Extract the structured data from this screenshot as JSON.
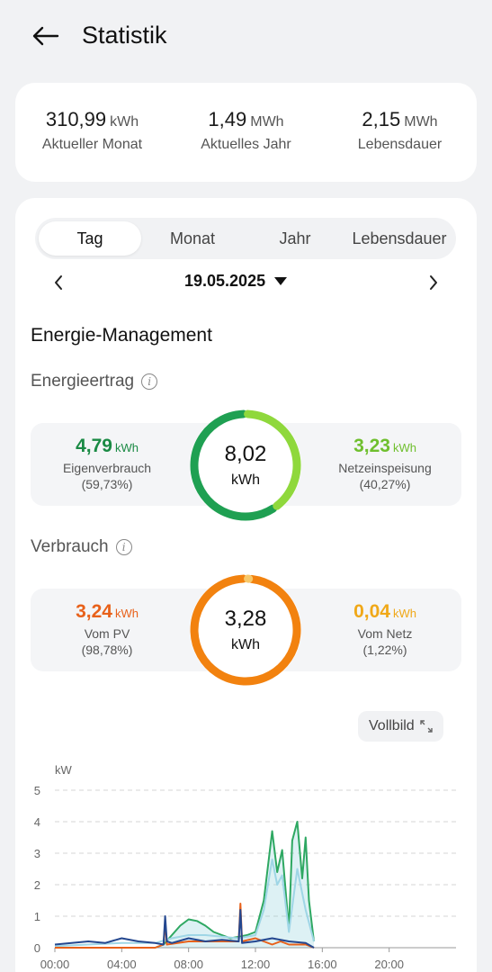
{
  "header": {
    "title": "Statistik"
  },
  "summary": [
    {
      "value": "310,99",
      "unit": "kWh",
      "label": "Aktueller Monat"
    },
    {
      "value": "1,49",
      "unit": "MWh",
      "label": "Aktuelles Jahr"
    },
    {
      "value": "2,15",
      "unit": "MWh",
      "label": "Lebensdauer"
    }
  ],
  "tabs": [
    {
      "label": "Tag",
      "active": true
    },
    {
      "label": "Monat",
      "active": false
    },
    {
      "label": "Jahr",
      "active": false
    },
    {
      "label": "Lebensdauer",
      "active": false
    }
  ],
  "date": "19.05.2025",
  "energy_management": {
    "title": "Energie-Management"
  },
  "yield": {
    "title": "Energieertrag",
    "total_value": "8,02",
    "total_unit": "kWh",
    "left": {
      "value": "4,79",
      "unit": "kWh",
      "label": "Eigenverbrauch",
      "percent": "(59,73%)",
      "color": "#1a8a44"
    },
    "right": {
      "value": "3,23",
      "unit": "kWh",
      "label": "Netzeinspeisung",
      "percent": "(40,27%)",
      "color": "#6fbf2e"
    },
    "fraction_left": 0.5973
  },
  "consumption": {
    "title": "Verbrauch",
    "total_value": "3,28",
    "total_unit": "kWh",
    "left": {
      "value": "3,24",
      "unit": "kWh",
      "label": "Vom PV",
      "percent": "(98,78%)",
      "color": "#e8611a"
    },
    "right": {
      "value": "0,04",
      "unit": "kWh",
      "label": "Vom Netz",
      "percent": "(1,22%)",
      "color": "#f0a818"
    },
    "fraction_left": 0.9878
  },
  "fullscreen_label": "Vollbild",
  "chart_data": {
    "type": "line",
    "ylabel": "kW",
    "ylim": [
      0,
      5
    ],
    "yticks": [
      "0",
      "1",
      "2",
      "3",
      "4",
      "5"
    ],
    "xlim": [
      0,
      24
    ],
    "xticks": [
      "00:00",
      "04:00",
      "08:00",
      "12:00",
      "16:00",
      "20:00"
    ],
    "series": [
      {
        "color": "#2ea862",
        "x": [
          0,
          2,
          4,
          6,
          6.5,
          7,
          7.5,
          8,
          8.5,
          9,
          9.5,
          10,
          10.5,
          11,
          11.5,
          12,
          12.5,
          13,
          13.3,
          13.6,
          14,
          14.2,
          14.5,
          14.8,
          15,
          15.2,
          15.5
        ],
        "values": [
          0,
          0,
          0,
          0,
          0.1,
          0.4,
          0.7,
          0.9,
          0.85,
          0.7,
          0.5,
          0.4,
          0.3,
          0.35,
          0.4,
          0.5,
          1.5,
          3.7,
          2.4,
          3.1,
          0.6,
          3.4,
          4.0,
          2.2,
          3.5,
          1.5,
          0.2
        ]
      },
      {
        "color": "#9fd6e6",
        "x": [
          0,
          2,
          4,
          6,
          7,
          8,
          9,
          10,
          11,
          12,
          12.5,
          13,
          13.3,
          13.6,
          14,
          14.5,
          15,
          15.5
        ],
        "values": [
          0.05,
          0.1,
          0.15,
          0.15,
          0.3,
          0.4,
          0.4,
          0.35,
          0.3,
          0.4,
          1.2,
          2.8,
          2.0,
          2.3,
          0.5,
          2.5,
          1.2,
          0.2
        ]
      },
      {
        "color": "#e8611a",
        "x": [
          0,
          2,
          4,
          6,
          6.5,
          6.6,
          6.7,
          8,
          10,
          11,
          11.1,
          11.2,
          12,
          13,
          13.5,
          14,
          15,
          15.5
        ],
        "values": [
          0,
          0,
          0,
          0,
          0.1,
          0.8,
          0.1,
          0.2,
          0.2,
          0.2,
          1.4,
          0.2,
          0.3,
          0.1,
          0.2,
          0.1,
          0.1,
          0
        ]
      },
      {
        "color": "#24478f",
        "x": [
          0,
          1,
          2,
          3,
          4,
          5,
          6,
          6.5,
          6.6,
          6.7,
          7,
          8,
          9,
          10,
          11,
          11.1,
          11.2,
          12,
          13,
          14,
          15,
          15.5
        ],
        "values": [
          0.1,
          0.15,
          0.2,
          0.15,
          0.3,
          0.2,
          0.15,
          0.1,
          1.0,
          0.2,
          0.15,
          0.3,
          0.2,
          0.25,
          0.2,
          1.2,
          0.15,
          0.2,
          0.3,
          0.2,
          0.15,
          0
        ]
      }
    ]
  }
}
